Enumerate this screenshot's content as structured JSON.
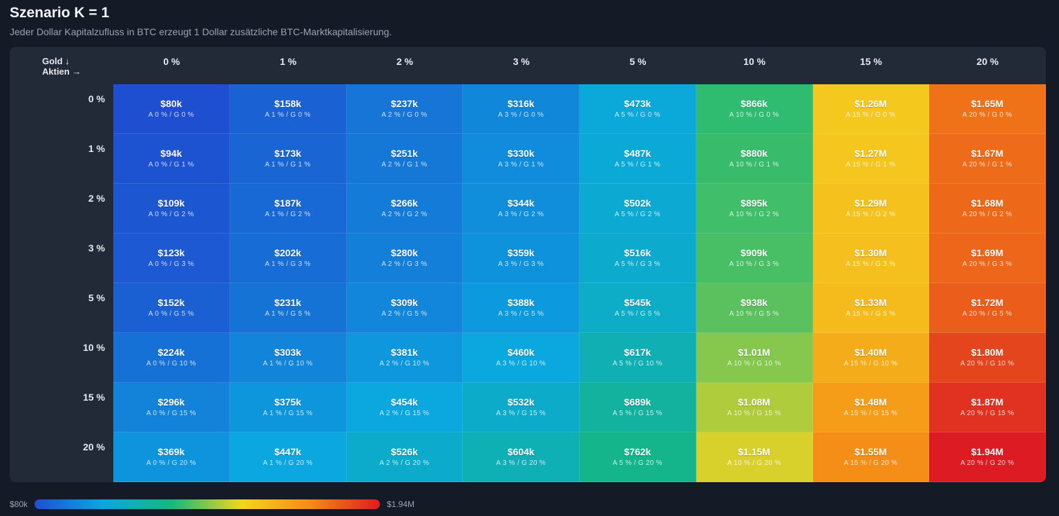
{
  "header": {
    "title": "Szenario K = 1",
    "subtitle": "Jeder Dollar Kapitalzufluss in BTC erzeugt 1 Dollar zusätzliche BTC-Marktkapitalisierung."
  },
  "corner": {
    "row_axis": "Gold ↓",
    "col_axis": "Aktien →"
  },
  "chart_data": {
    "type": "heatmap",
    "title": "Szenario K = 1",
    "subtitle": "Jeder Dollar Kapitalzufluss in BTC erzeugt 1 Dollar zusätzliche BTC-Marktkapitalisierung.",
    "xlabel": "Aktien →",
    "ylabel": "Gold ↓",
    "columns": [
      "0 %",
      "1 %",
      "2 %",
      "3 %",
      "5 %",
      "10 %",
      "15 %",
      "20 %"
    ],
    "rows": [
      "0 %",
      "1 %",
      "2 %",
      "3 %",
      "5 %",
      "10 %",
      "15 %",
      "20 %"
    ],
    "col_keys": [
      0,
      1,
      2,
      3,
      5,
      10,
      15,
      20
    ],
    "row_keys": [
      0,
      1,
      2,
      3,
      5,
      10,
      15,
      20
    ],
    "values": [
      [
        80000,
        158000,
        237000,
        316000,
        473000,
        866000,
        1260000,
        1650000
      ],
      [
        94000,
        173000,
        251000,
        330000,
        487000,
        880000,
        1270000,
        1670000
      ],
      [
        109000,
        187000,
        266000,
        344000,
        502000,
        895000,
        1290000,
        1680000
      ],
      [
        123000,
        202000,
        280000,
        359000,
        516000,
        909000,
        1300000,
        1690000
      ],
      [
        152000,
        231000,
        309000,
        388000,
        545000,
        938000,
        1330000,
        1720000
      ],
      [
        224000,
        303000,
        381000,
        460000,
        617000,
        1010000,
        1400000,
        1800000
      ],
      [
        296000,
        375000,
        454000,
        532000,
        689000,
        1080000,
        1480000,
        1870000
      ],
      [
        369000,
        447000,
        526000,
        604000,
        762000,
        1150000,
        1550000,
        1940000
      ]
    ],
    "value_labels": [
      [
        "$80k",
        "$158k",
        "$237k",
        "$316k",
        "$473k",
        "$866k",
        "$1.26M",
        "$1.65M"
      ],
      [
        "$94k",
        "$173k",
        "$251k",
        "$330k",
        "$487k",
        "$880k",
        "$1.27M",
        "$1.67M"
      ],
      [
        "$109k",
        "$187k",
        "$266k",
        "$344k",
        "$502k",
        "$895k",
        "$1.29M",
        "$1.68M"
      ],
      [
        "$123k",
        "$202k",
        "$280k",
        "$359k",
        "$516k",
        "$909k",
        "$1.30M",
        "$1.69M"
      ],
      [
        "$152k",
        "$231k",
        "$309k",
        "$388k",
        "$545k",
        "$938k",
        "$1.33M",
        "$1.72M"
      ],
      [
        "$224k",
        "$303k",
        "$381k",
        "$460k",
        "$617k",
        "$1.01M",
        "$1.40M",
        "$1.80M"
      ],
      [
        "$296k",
        "$375k",
        "$454k",
        "$532k",
        "$689k",
        "$1.08M",
        "$1.48M",
        "$1.87M"
      ],
      [
        "$369k",
        "$447k",
        "$526k",
        "$604k",
        "$762k",
        "$1.15M",
        "$1.55M",
        "$1.94M"
      ]
    ],
    "color_scale": [
      "#1e4fd0",
      "#0aa8e0",
      "#16b87a",
      "#f5d520",
      "#f58a15",
      "#dc1c22"
    ],
    "legend": {
      "min_label": "$80k",
      "max_label": "$1.94M",
      "placement": "bottom-left"
    }
  }
}
